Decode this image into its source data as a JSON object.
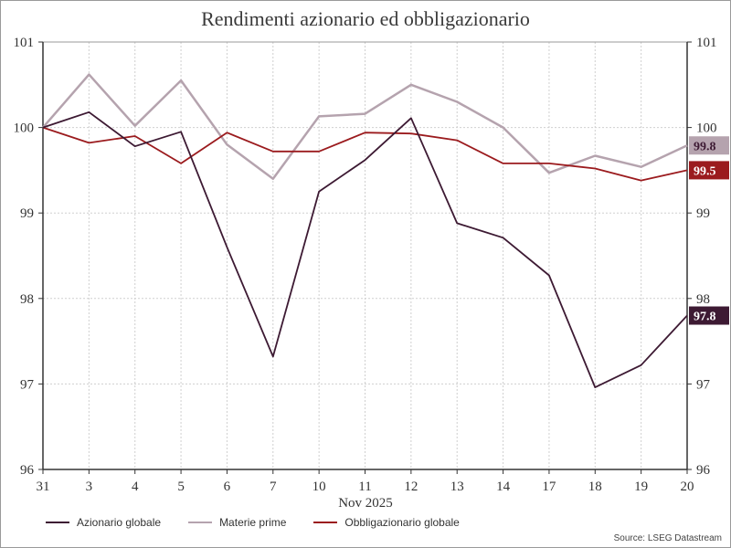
{
  "chart_data": {
    "type": "line",
    "title": "Rendimenti azionario ed obbligazionario",
    "xlabel": "Nov 2025",
    "ylabel": "",
    "categories": [
      "31",
      "3",
      "4",
      "5",
      "6",
      "7",
      "10",
      "11",
      "12",
      "13",
      "14",
      "17",
      "18",
      "19",
      "20"
    ],
    "ylim": [
      96,
      101
    ],
    "yticks": [
      96,
      97,
      98,
      99,
      100,
      101
    ],
    "grid": true,
    "legend_position": "bottom-left",
    "series": [
      {
        "name": "Azionario globale",
        "color": "#3d1a33",
        "end_label": "97.8",
        "end_label_text_color": "#ffffff",
        "values": [
          100.0,
          100.18,
          99.78,
          99.95,
          98.6,
          97.32,
          99.25,
          99.62,
          100.11,
          98.88,
          98.71,
          98.27,
          96.96,
          97.22,
          97.8
        ]
      },
      {
        "name": "Materie prime",
        "color": "#b5a3ae",
        "end_label": "99.8",
        "end_label_text_color": "#3d1a33",
        "values": [
          100.0,
          100.62,
          100.02,
          100.55,
          99.8,
          99.4,
          100.13,
          100.16,
          100.5,
          100.3,
          100.0,
          99.47,
          99.67,
          99.54,
          99.79
        ]
      },
      {
        "name": "Obbligazionario globale",
        "color": "#9b1b1e",
        "end_label": "99.5",
        "end_label_text_color": "#ffffff",
        "values": [
          100.0,
          99.82,
          99.9,
          99.58,
          99.94,
          99.72,
          99.72,
          99.94,
          99.93,
          99.85,
          99.58,
          99.58,
          99.52,
          99.38,
          99.5
        ]
      }
    ]
  },
  "source": "Source: LSEG Datastream"
}
